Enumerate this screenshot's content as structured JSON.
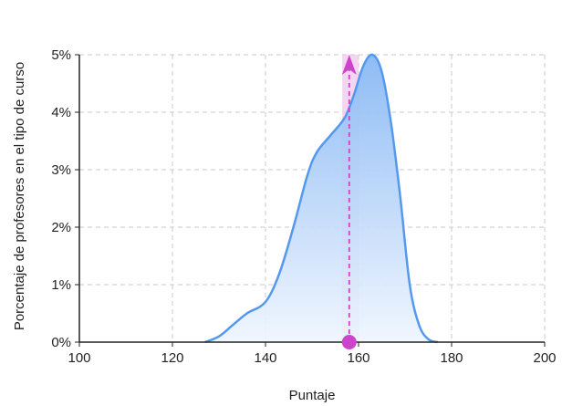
{
  "chart_data": {
    "type": "area",
    "title": "",
    "xlabel": "Puntaje",
    "ylabel": "Porcentaje de profesores en el tipo de curso",
    "xlim": [
      100,
      200
    ],
    "ylim": [
      0,
      5
    ],
    "x_ticks": [
      100,
      120,
      140,
      160,
      180,
      200
    ],
    "x_tick_labels": [
      "100",
      "120",
      "140",
      "160",
      "180",
      "200"
    ],
    "y_ticks": [
      0,
      1,
      2,
      3,
      4,
      5
    ],
    "y_tick_labels": [
      "0%",
      "1%",
      "2%",
      "3%",
      "4%",
      "5%"
    ],
    "grid": true,
    "series": [
      {
        "x": [
          127,
          130,
          133,
          136,
          140,
          143,
          146,
          149,
          151,
          154,
          157,
          159,
          161,
          163,
          165,
          167,
          169,
          171,
          173,
          175,
          177
        ],
        "y": [
          0,
          0.1,
          0.3,
          0.5,
          0.7,
          1.2,
          2.0,
          2.9,
          3.3,
          3.6,
          3.9,
          4.3,
          4.8,
          5.0,
          4.7,
          3.8,
          2.5,
          1.0,
          0.3,
          0.05,
          0
        ]
      }
    ],
    "marker": {
      "x": 158,
      "band": [
        156.5,
        160
      ],
      "color": "#cc44cc"
    },
    "colors": {
      "line": "#5599ee",
      "fill_top": "#88b8f4",
      "fill_bottom": "#eef5fe",
      "marker": "#cc44cc",
      "band": "#f0c8ee",
      "grid": "#c8c8c8"
    }
  }
}
